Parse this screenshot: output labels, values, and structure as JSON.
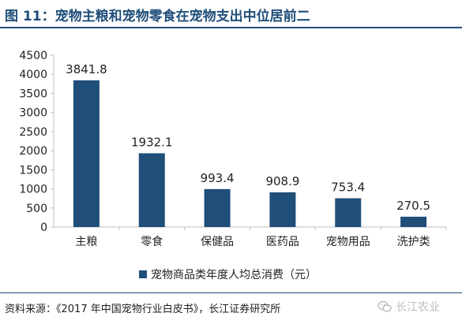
{
  "figure": {
    "title": "图 11：宠物主粮和宠物零食在宠物支出中位居前二",
    "source": "资料来源：《2017 年中国宠物行业白皮书》，长江证券研究所",
    "watermark": "长江农业",
    "watermark_icon": "wechat-icon"
  },
  "colors": {
    "bar": "#1f4e79",
    "title": "#1f4e79",
    "axis": "#bfbfbf"
  },
  "chart_data": {
    "type": "bar",
    "categories": [
      "主粮",
      "零食",
      "保健品",
      "医药品",
      "宠物用品",
      "洗护类"
    ],
    "series": [
      {
        "name": "宠物商品类年度人均总消费（元）",
        "values": [
          3841.8,
          1932.1,
          993.4,
          908.9,
          753.4,
          270.5
        ]
      }
    ],
    "data_labels": [
      "3841.8",
      "1932.1",
      "993.4",
      "908.9",
      "753.4",
      "270.5"
    ],
    "yticks": [
      "0",
      "500",
      "1000",
      "1500",
      "2000",
      "2500",
      "3000",
      "3500",
      "4000",
      "4500"
    ],
    "ylim": [
      0,
      4500
    ],
    "grid": false,
    "legend_position": "bottom"
  }
}
